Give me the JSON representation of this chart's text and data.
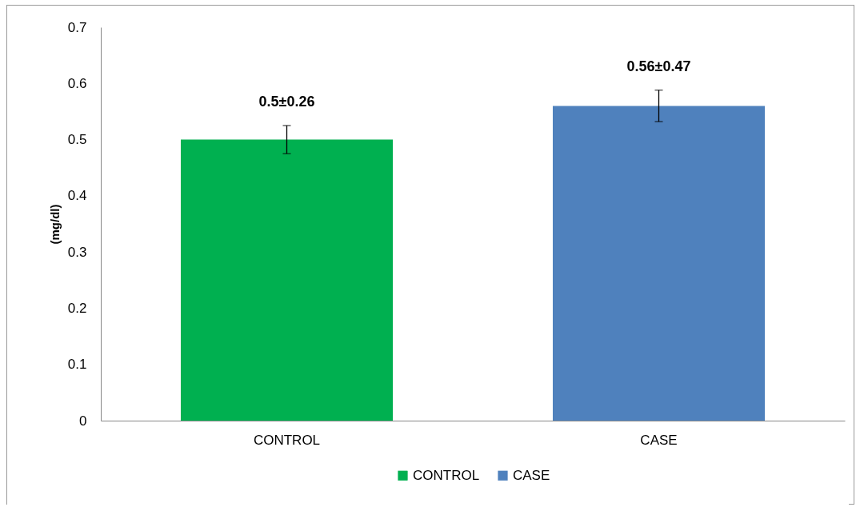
{
  "chart_data": {
    "type": "bar",
    "ylabel": "(mg/dl)",
    "categories": [
      "CONTROL",
      "CASE"
    ],
    "series": [
      {
        "name": "CONTROL",
        "color": "#00b050",
        "values": [
          0.5,
          null
        ],
        "errors": [
          0.025,
          null
        ],
        "value_labels": [
          "0.5±0.26",
          null
        ]
      },
      {
        "name": "CASE",
        "color": "#4f81bd",
        "values": [
          null,
          0.56
        ],
        "errors": [
          null,
          0.028
        ],
        "value_labels": [
          null,
          "0.56±0.47"
        ]
      }
    ],
    "ylim": [
      0,
      0.7
    ],
    "yticks": [
      0,
      0.1,
      0.2,
      0.3,
      0.4,
      0.5,
      0.6,
      0.7
    ],
    "grid": false,
    "legend": "bottom"
  }
}
